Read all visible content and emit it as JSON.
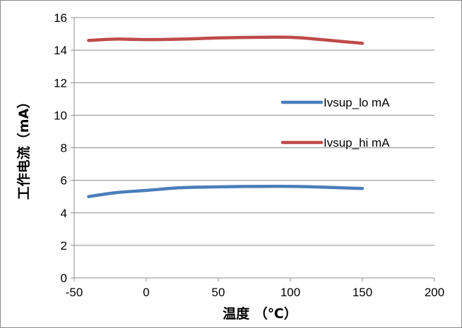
{
  "chart_data": {
    "type": "line",
    "title": "",
    "xlabel": "温度 （℃）",
    "ylabel": "工作电流（mA）",
    "xlim": [
      -50,
      200
    ],
    "ylim": [
      0,
      16
    ],
    "x_ticks": [
      "-50",
      "0",
      "50",
      "100",
      "150",
      "200"
    ],
    "y_ticks": [
      "0",
      "2",
      "4",
      "6",
      "8",
      "10",
      "12",
      "14",
      "16"
    ],
    "grid": true,
    "legend_position": "right-middle",
    "series": [
      {
        "name": "Ivsup_lo mA",
        "color": "#4a7ebb",
        "x": [
          -40,
          -20,
          0,
          25,
          50,
          85,
          105,
          125,
          150
        ],
        "y": [
          5.0,
          5.25,
          5.38,
          5.55,
          5.6,
          5.63,
          5.62,
          5.57,
          5.5
        ]
      },
      {
        "name": "Ivsup_hi mA",
        "color": "#be4b48",
        "x": [
          -40,
          -20,
          0,
          25,
          50,
          85,
          105,
          125,
          150
        ],
        "y": [
          14.6,
          14.68,
          14.65,
          14.68,
          14.75,
          14.8,
          14.77,
          14.62,
          14.42
        ]
      }
    ]
  }
}
